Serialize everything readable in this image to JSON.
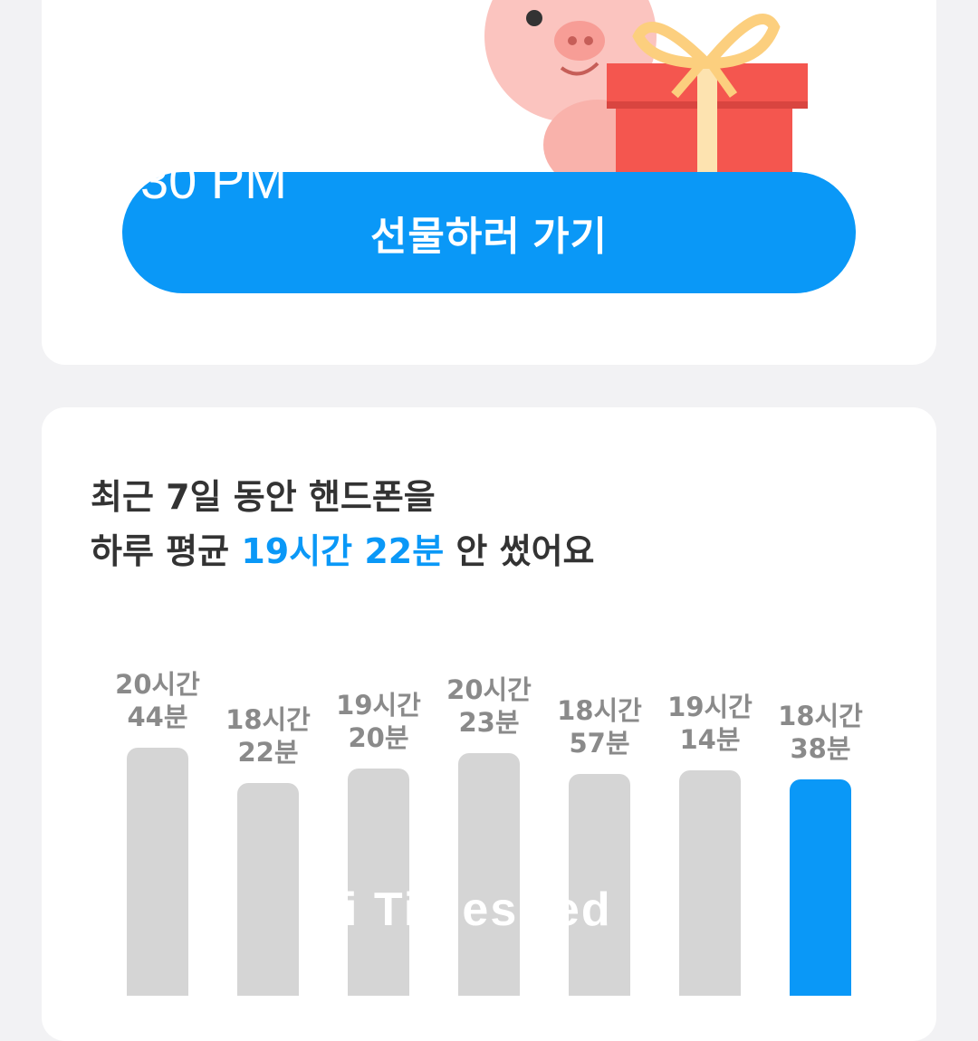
{
  "gift_card": {
    "button_label": "선물하러 가기",
    "illustration": "pig-with-gift-box"
  },
  "overlay_time": "30 PM",
  "usage_card": {
    "title_line1": "최근 7일 동안 핸드폰을",
    "title_line2_prefix": "하루 평균 ",
    "title_line2_highlight": "19시간 22분",
    "title_line2_suffix": " 안 썼어요"
  },
  "colors": {
    "accent": "#0a98f7",
    "bar_gray": "#d5d5d5",
    "background": "#f2f2f4"
  },
  "chart_data": {
    "type": "bar",
    "unit": "minutes",
    "values": [
      1244,
      1102,
      1160,
      1223,
      1137,
      1154,
      1118
    ],
    "labels": [
      [
        "20시간",
        "44분"
      ],
      [
        "18시간",
        "22분"
      ],
      [
        "19시간",
        "20분"
      ],
      [
        "20시간",
        "23분"
      ],
      [
        "18시간",
        "57분"
      ],
      [
        "19시간",
        "14분"
      ],
      [
        "18시간",
        "38분"
      ]
    ],
    "highlighted_index": 6
  },
  "watermark": "i Times   red"
}
